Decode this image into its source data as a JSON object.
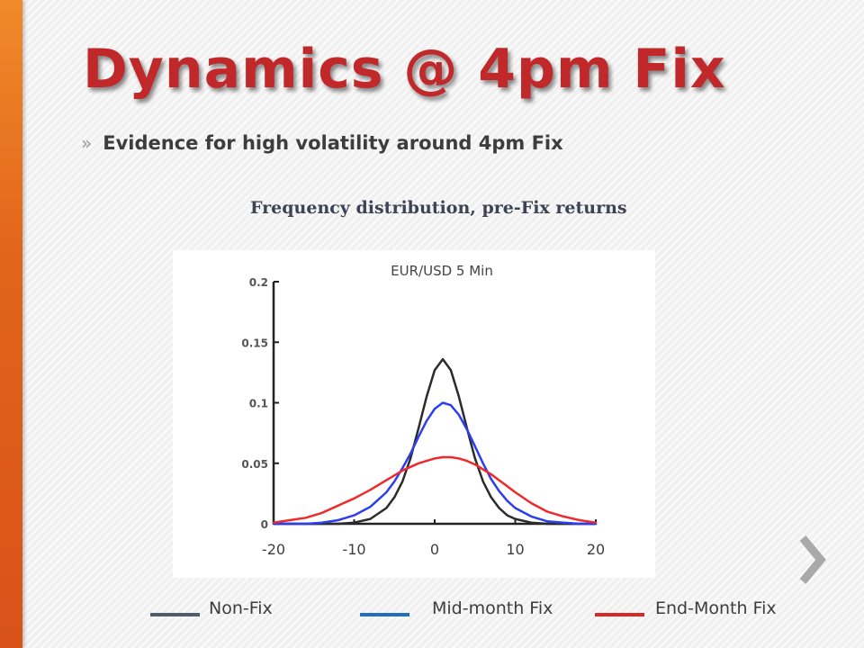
{
  "slide": {
    "title": "Dynamics @ 4pm Fix",
    "bullet_marker": "»",
    "bullet_text": "Evidence for high volatility around 4pm Fix",
    "chart_heading": "Frequency distribution, pre-Fix returns",
    "accent_color": "#e8731f",
    "title_color": "#c0282a",
    "next_icon": "chevron-right-icon"
  },
  "legend": [
    {
      "label": "Non-Fix",
      "color": "#4e5c6e"
    },
    {
      "label": "Mid-month Fix",
      "color": "#1f70b8"
    },
    {
      "label": "End-Month Fix",
      "color": "#d42a2a"
    }
  ],
  "chart_data": {
    "type": "line",
    "title": "EUR/USD 5 Min",
    "xlim": [
      -20,
      20
    ],
    "ylim": [
      0,
      0.2
    ],
    "x_ticks": [
      -20,
      -10,
      0,
      10,
      20
    ],
    "x_tick_labels": [
      "-20",
      "-10",
      "0",
      "10",
      "20"
    ],
    "y_ticks": [
      0,
      0.05,
      0.1,
      0.15,
      0.2
    ],
    "y_tick_labels": [
      "0",
      "0.05",
      "0.1",
      "0.15",
      "0.2"
    ],
    "grid": false,
    "x": [
      -20,
      -18,
      -16,
      -14,
      -12,
      -10,
      -8,
      -6,
      -5,
      -4,
      -3,
      -2,
      -1,
      0,
      1,
      2,
      3,
      4,
      5,
      6,
      7,
      8,
      9,
      10,
      12,
      14,
      16,
      18,
      20
    ],
    "series": [
      {
        "name": "Non-Fix",
        "color": "#2b2b2b",
        "values": [
          0.0,
          0.0,
          0.0,
          0.0,
          0.0,
          0.001,
          0.004,
          0.013,
          0.022,
          0.035,
          0.054,
          0.079,
          0.105,
          0.127,
          0.136,
          0.127,
          0.105,
          0.079,
          0.054,
          0.035,
          0.022,
          0.013,
          0.007,
          0.004,
          0.001,
          0.0,
          0.0,
          0.0,
          0.0
        ]
      },
      {
        "name": "Mid-month Fix",
        "color": "#2b3ef0",
        "values": [
          0.0,
          0.0,
          0.0,
          0.001,
          0.003,
          0.007,
          0.014,
          0.026,
          0.035,
          0.046,
          0.058,
          0.072,
          0.085,
          0.095,
          0.1,
          0.098,
          0.09,
          0.078,
          0.064,
          0.05,
          0.037,
          0.027,
          0.019,
          0.013,
          0.006,
          0.002,
          0.001,
          0.0,
          0.0
        ]
      },
      {
        "name": "End-Month Fix",
        "color": "#ee2a2a",
        "values": [
          0.001,
          0.003,
          0.005,
          0.009,
          0.015,
          0.021,
          0.028,
          0.036,
          0.04,
          0.044,
          0.047,
          0.05,
          0.052,
          0.054,
          0.055,
          0.055,
          0.054,
          0.052,
          0.049,
          0.045,
          0.041,
          0.036,
          0.031,
          0.026,
          0.017,
          0.01,
          0.006,
          0.003,
          0.001
        ]
      }
    ]
  }
}
